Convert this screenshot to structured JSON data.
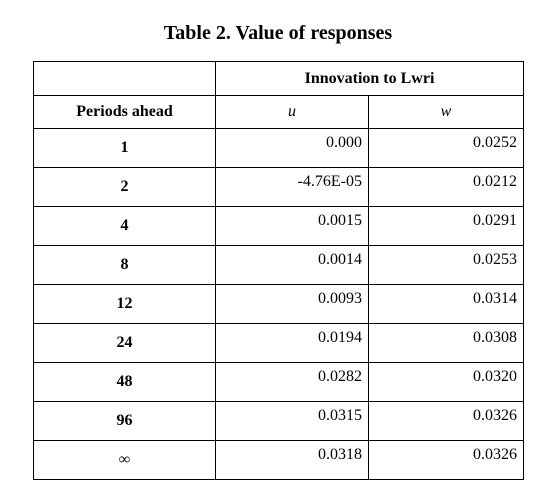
{
  "caption": "Table 2. Value of responses",
  "header": {
    "group": "Innovation to Lwri",
    "row_label": "Periods ahead",
    "col_u": "u",
    "col_w": "w"
  },
  "rows": [
    {
      "period": "1",
      "u": "0.000",
      "w": "0.0252"
    },
    {
      "period": "2",
      "u": "-4.76E-05",
      "w": "0.0212"
    },
    {
      "period": "4",
      "u": "0.0015",
      "w": "0.0291"
    },
    {
      "period": "8",
      "u": "0.0014",
      "w": "0.0253"
    },
    {
      "period": "12",
      "u": "0.0093",
      "w": "0.0314"
    },
    {
      "period": "24",
      "u": "0.0194",
      "w": "0.0308"
    },
    {
      "period": "48",
      "u": "0.0282",
      "w": "0.0320"
    },
    {
      "period": "96",
      "u": "0.0315",
      "w": "0.0326"
    },
    {
      "period": "∞",
      "u": "0.0318",
      "w": "0.0326"
    }
  ]
}
